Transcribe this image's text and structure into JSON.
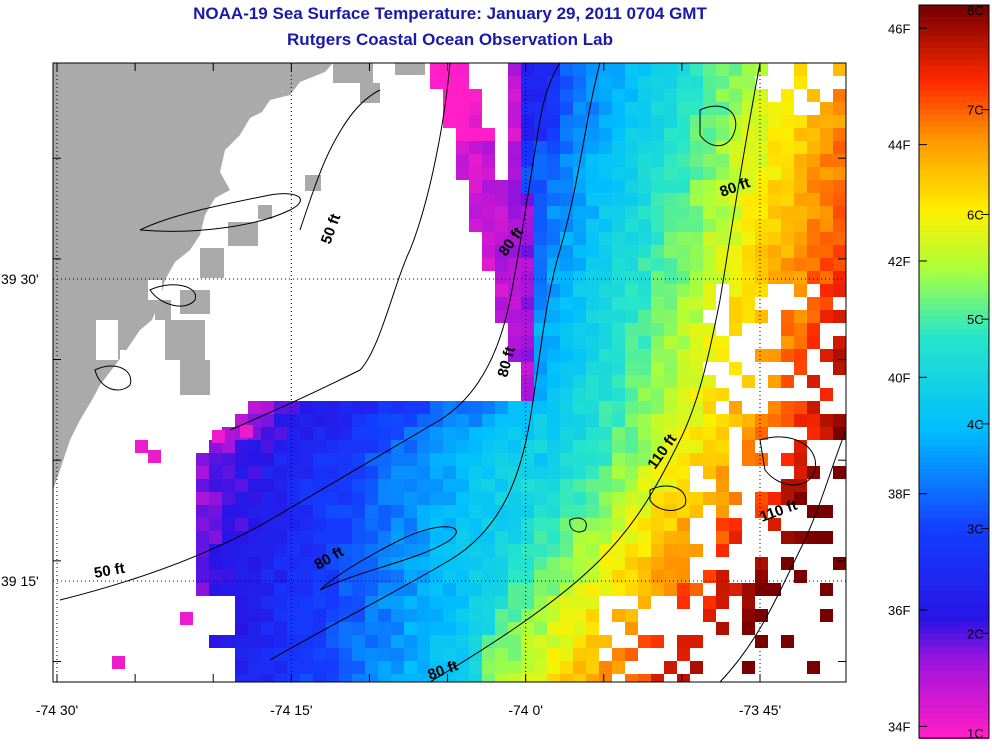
{
  "header": {
    "title": "NOAA-19 Sea Surface Temperature:  January 29, 2011 0704 GMT",
    "subtitle": "Rutgers Coastal Ocean Observation Lab"
  },
  "map": {
    "lon_ticks": [
      "-74 30'",
      "-74 15'",
      "-74 0'",
      "-73 45'"
    ],
    "lat_ticks": [
      "39 30'",
      "39 15'"
    ],
    "contour_labels": [
      "50 ft",
      "50 ft",
      "80 ft",
      "80 ft",
      "80 ft",
      "80 ft",
      "80 ft",
      "110 ft",
      "110 ft"
    ],
    "colors": {
      "land": "#aaaaaa",
      "coast": "#000000",
      "grid": "#000000"
    }
  },
  "colorbar": {
    "f_labels": [
      "46F",
      "44F",
      "42F",
      "40F",
      "38F",
      "36F",
      "34F"
    ],
    "c_labels": [
      "8C",
      "7C",
      "6C",
      "5C",
      "4C",
      "3C",
      "2C",
      "1C"
    ],
    "range_c": [
      1,
      8
    ]
  }
}
